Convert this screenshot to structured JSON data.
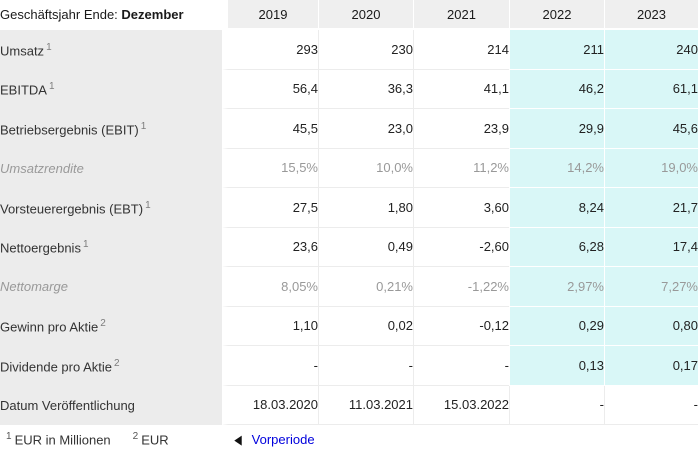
{
  "chart_data": {
    "type": "table",
    "title": "Geschäftsjahr Ende: Dezember",
    "title_prefix": "Geschäftsjahr Ende:",
    "title_bold": "Dezember",
    "columns": [
      "2019",
      "2020",
      "2021",
      "2022",
      "2023"
    ],
    "highlighted_columns": [
      "2022",
      "2023"
    ],
    "rows": [
      {
        "label": "Umsatz",
        "sup": "1",
        "muted": false,
        "highlight": true,
        "values": [
          "293",
          "230",
          "214",
          "211",
          "240"
        ]
      },
      {
        "label": "EBITDA",
        "sup": "1",
        "muted": false,
        "highlight": true,
        "values": [
          "56,4",
          "36,3",
          "41,1",
          "46,2",
          "61,1"
        ]
      },
      {
        "label": "Betriebsergebnis (EBIT)",
        "sup": "1",
        "muted": false,
        "highlight": true,
        "values": [
          "45,5",
          "23,0",
          "23,9",
          "29,9",
          "45,6"
        ]
      },
      {
        "label": "Umsatzrendite",
        "sup": "",
        "muted": true,
        "highlight": true,
        "values": [
          "15,5%",
          "10,0%",
          "11,2%",
          "14,2%",
          "19,0%"
        ]
      },
      {
        "label": "Vorsteuerergebnis (EBT)",
        "sup": "1",
        "muted": false,
        "highlight": true,
        "values": [
          "27,5",
          "1,80",
          "3,60",
          "8,24",
          "21,7"
        ]
      },
      {
        "label": "Nettoergebnis",
        "sup": "1",
        "muted": false,
        "highlight": true,
        "values": [
          "23,6",
          "0,49",
          "-2,60",
          "6,28",
          "17,4"
        ]
      },
      {
        "label": "Nettomarge",
        "sup": "",
        "muted": true,
        "highlight": true,
        "values": [
          "8,05%",
          "0,21%",
          "-1,22%",
          "2,97%",
          "7,27%"
        ]
      },
      {
        "label": "Gewinn pro Aktie",
        "sup": "2",
        "muted": false,
        "highlight": true,
        "values": [
          "1,10",
          "0,02",
          "-0,12",
          "0,29",
          "0,80"
        ]
      },
      {
        "label": "Dividende pro Aktie",
        "sup": "2",
        "muted": false,
        "highlight": true,
        "values": [
          "-",
          "-",
          "-",
          "0,13",
          "0,17"
        ]
      },
      {
        "label": "Datum Veröffentlichung",
        "sup": "",
        "muted": false,
        "highlight": false,
        "values": [
          "18.03.2020",
          "11.03.2021",
          "15.03.2022",
          "-",
          "-"
        ]
      }
    ]
  },
  "footer": {
    "footnotes": [
      {
        "sup": "1",
        "text": "EUR in Millionen"
      },
      {
        "sup": "2",
        "text": "EUR"
      }
    ],
    "nav": {
      "prev_icon": "◀",
      "link_label": "Vorperiode"
    }
  },
  "colors": {
    "highlight_bg": "#d9f7f7",
    "label_bg": "#ececec",
    "header_bg": "#efefef",
    "link": "#0000dd",
    "muted_text": "#999999"
  }
}
